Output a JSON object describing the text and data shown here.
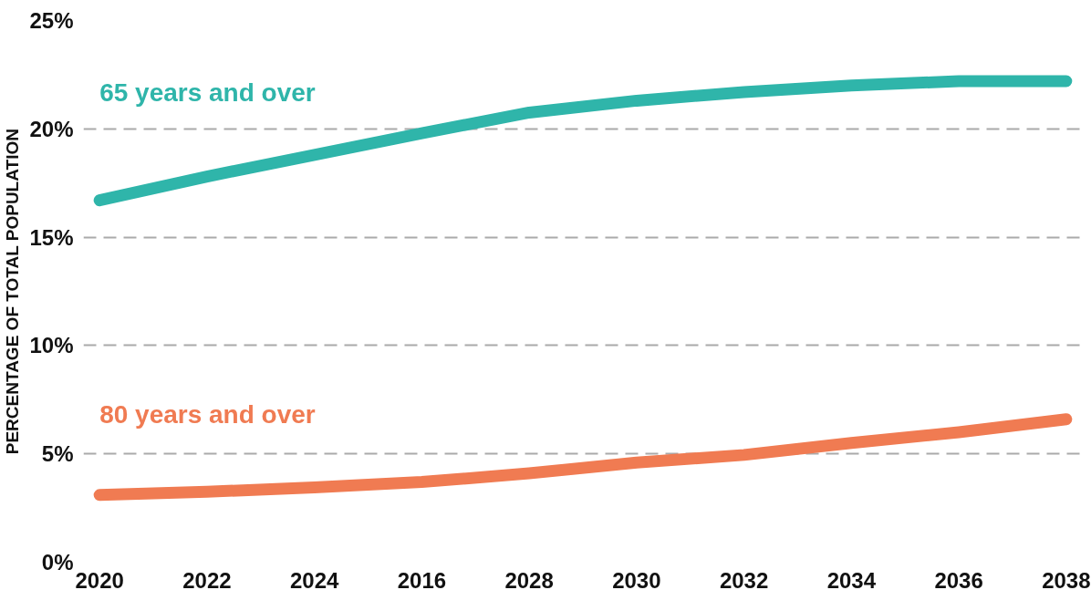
{
  "chart_data": {
    "type": "line",
    "ylabel": "PERCENTAGE OF TOTAL POPULATION",
    "categories": [
      "2020",
      "2022",
      "2024",
      "2016",
      "2028",
      "2030",
      "2032",
      "2034",
      "2036",
      "2038"
    ],
    "series": [
      {
        "name": "65 years and over",
        "color": "#2fb5aa",
        "values": [
          16.7,
          17.8,
          18.8,
          19.8,
          20.75,
          21.3,
          21.7,
          22.0,
          22.2,
          22.2
        ]
      },
      {
        "name": "80 years and over",
        "color": "#f07b52",
        "values": [
          3.1,
          3.25,
          3.45,
          3.7,
          4.1,
          4.6,
          4.95,
          5.5,
          6.0,
          6.6
        ]
      }
    ],
    "ylim": [
      0,
      25
    ],
    "yticks": [
      {
        "value": 0,
        "label": "0%"
      },
      {
        "value": 5,
        "label": "5%"
      },
      {
        "value": 10,
        "label": "10%"
      },
      {
        "value": 15,
        "label": "15%"
      },
      {
        "value": 20,
        "label": "20%"
      },
      {
        "value": 25,
        "label": "25%"
      }
    ],
    "grid": "y",
    "legend": false,
    "marker": "none",
    "line_style": "solid"
  }
}
